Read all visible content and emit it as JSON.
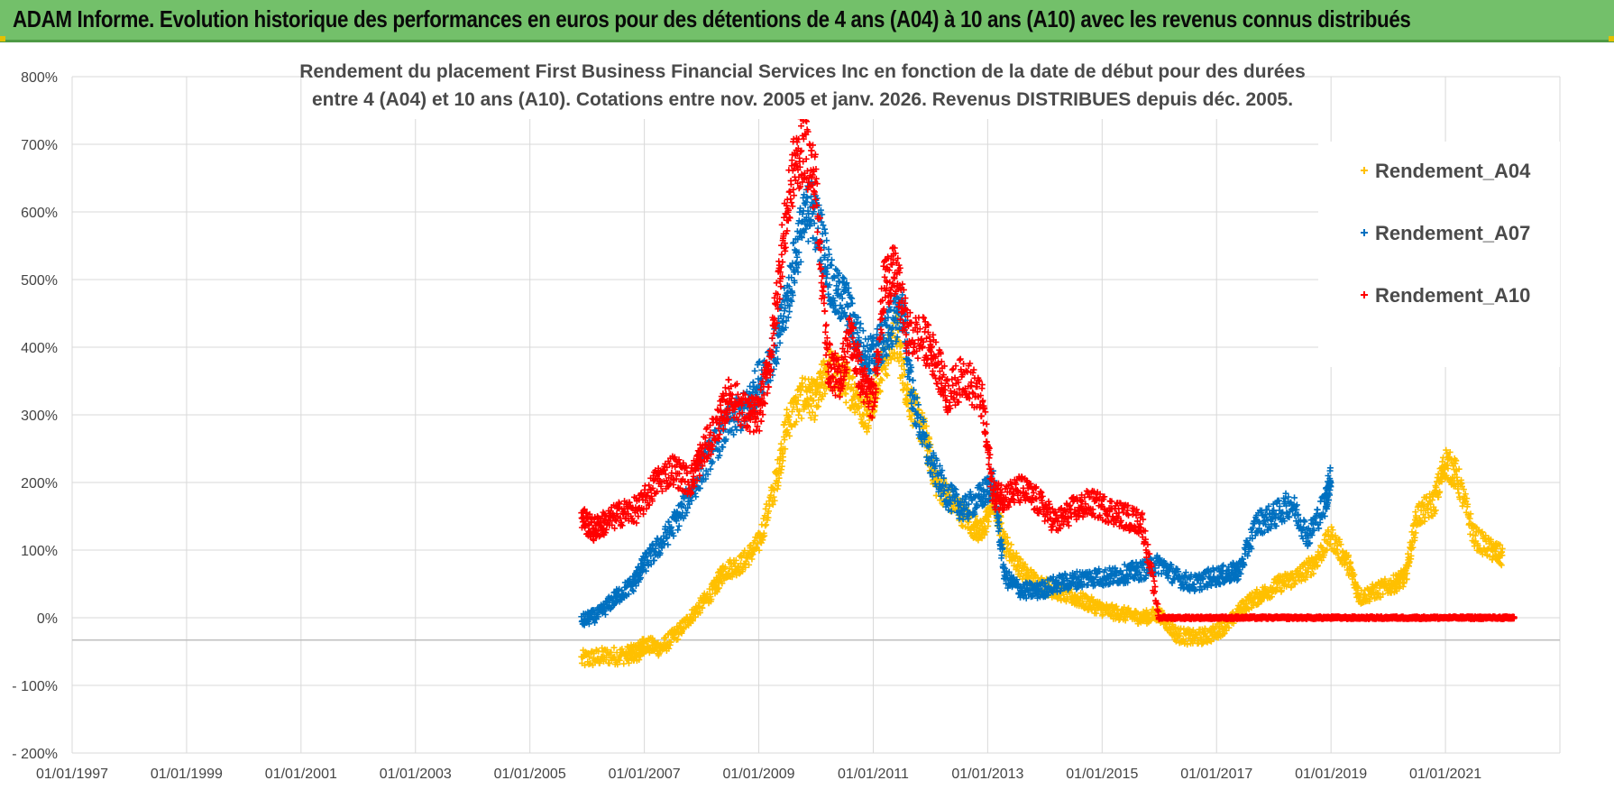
{
  "header": {
    "title": "ADAM Informe. Evolution historique des performances en euros pour des détentions de 4 ans (A04) à 10 ans (A10) avec les revenus connus distribués"
  },
  "chart_data": {
    "type": "scatter",
    "title_line1": "Rendement du placement First Business Financial Services  Inc en fonction de la date de début pour des durées",
    "title_line2": "entre 4 (A04) et 10 ans (A10).  Cotations entre nov. 2005 et janv. 2026. Revenus DISTRIBUES  depuis déc. 2005.",
    "xlabel": "",
    "ylabel": "",
    "xlim": [
      1997.0,
      2023.0
    ],
    "ylim": [
      -200,
      800
    ],
    "y_ticks": [
      -200,
      -100,
      0,
      100,
      200,
      300,
      400,
      500,
      600,
      700,
      800
    ],
    "y_tick_labels": [
      "- 200%",
      "- 100%",
      "0%",
      "100%",
      "200%",
      "300%",
      "400%",
      "500%",
      "600%",
      "700%",
      "800%"
    ],
    "x_ticks": [
      1997,
      1999,
      2001,
      2003,
      2005,
      2007,
      2009,
      2011,
      2013,
      2015,
      2017,
      2019,
      2021
    ],
    "x_tick_labels": [
      "01/01/1997",
      "01/01/1999",
      "01/01/2001",
      "01/01/2003",
      "01/01/2005",
      "01/01/2007",
      "01/01/2009",
      "01/01/2011",
      "01/01/2013",
      "01/01/2015",
      "01/01/2017",
      "01/01/2019",
      "01/01/2021"
    ],
    "grid": true,
    "legend_position": "top-right",
    "series": [
      {
        "name": "Rendement_A04",
        "color": "#ffc000",
        "x": [
          2005.9,
          2006.3,
          2006.7,
          2006.9,
          2007.0,
          2007.3,
          2007.6,
          2007.9,
          2008.2,
          2008.4,
          2008.7,
          2009.0,
          2009.3,
          2009.5,
          2009.8,
          2010.0,
          2010.2,
          2010.5,
          2010.7,
          2010.9,
          2011.1,
          2011.4,
          2011.6,
          2011.9,
          2012.1,
          2012.4,
          2012.7,
          2012.9,
          2013.1,
          2013.3,
          2013.6,
          2013.9,
          2014.2,
          2014.5,
          2014.8,
          2015.1,
          2015.4,
          2015.7,
          2016.0,
          2016.3,
          2016.6,
          2016.9,
          2017.2,
          2017.5,
          2017.8,
          2018.1,
          2018.4,
          2018.7,
          2019.0,
          2019.3,
          2019.5,
          2019.8,
          2020.1,
          2020.3,
          2020.5,
          2020.8,
          2021.0,
          2021.2,
          2021.5,
          2021.8,
          2022.0
        ],
        "values": [
          -62,
          -57,
          -55,
          -50,
          -40,
          -45,
          -20,
          10,
          40,
          70,
          80,
          110,
          200,
          290,
          330,
          320,
          370,
          350,
          330,
          300,
          360,
          420,
          330,
          270,
          200,
          170,
          140,
          125,
          175,
          110,
          70,
          50,
          40,
          30,
          20,
          10,
          5,
          0,
          5,
          -25,
          -30,
          -25,
          -10,
          20,
          35,
          50,
          60,
          80,
          120,
          80,
          30,
          40,
          50,
          60,
          150,
          170,
          230,
          210,
          120,
          100,
          90
        ]
      },
      {
        "name": "Rendement_A07",
        "color": "#0070c0",
        "x": [
          2005.9,
          2006.2,
          2006.5,
          2006.8,
          2007.0,
          2007.3,
          2007.6,
          2007.9,
          2008.2,
          2008.5,
          2008.8,
          2009.0,
          2009.3,
          2009.5,
          2009.7,
          2009.9,
          2010.1,
          2010.3,
          2010.5,
          2010.7,
          2010.9,
          2011.1,
          2011.3,
          2011.5,
          2011.7,
          2012.0,
          2012.3,
          2012.6,
          2012.9,
          2013.1,
          2013.3,
          2013.6,
          2013.9,
          2014.2,
          2014.5,
          2014.8,
          2015.1,
          2015.4,
          2015.7,
          2016.0,
          2016.3,
          2016.6,
          2016.9,
          2017.2,
          2017.4,
          2017.7,
          2018.0,
          2018.3,
          2018.6,
          2018.9,
          2019.0
        ],
        "values": [
          -5,
          5,
          30,
          50,
          80,
          110,
          150,
          200,
          250,
          290,
          310,
          350,
          400,
          470,
          560,
          610,
          560,
          480,
          470,
          420,
          380,
          400,
          430,
          460,
          320,
          230,
          180,
          160,
          180,
          200,
          60,
          40,
          40,
          50,
          55,
          60,
          60,
          65,
          70,
          80,
          60,
          50,
          60,
          65,
          70,
          140,
          150,
          170,
          120,
          170,
          210
        ]
      },
      {
        "name": "Rendement_A10",
        "color": "#ff0000",
        "x": [
          2005.9,
          2006.1,
          2006.3,
          2006.6,
          2006.9,
          2007.2,
          2007.5,
          2007.8,
          2008.0,
          2008.3,
          2008.5,
          2008.8,
          2009.0,
          2009.2,
          2009.4,
          2009.6,
          2009.8,
          2010.0,
          2010.2,
          2010.4,
          2010.6,
          2010.8,
          2011.0,
          2011.2,
          2011.4,
          2011.6,
          2011.9,
          2012.1,
          2012.3,
          2012.6,
          2012.9,
          2013.1,
          2013.3,
          2013.6,
          2013.9,
          2014.2,
          2014.5,
          2014.8,
          2015.1,
          2015.4,
          2015.7,
          2016.0,
          2016.5,
          2017.0,
          2017.5,
          2018.0,
          2018.5,
          2019.0,
          2019.5,
          2020.0,
          2020.5,
          2021.0,
          2021.5,
          2022.0,
          2022.2
        ],
        "values": [
          150,
          130,
          140,
          155,
          160,
          200,
          220,
          200,
          240,
          290,
          330,
          300,
          300,
          380,
          540,
          660,
          700,
          640,
          380,
          350,
          420,
          350,
          320,
          500,
          510,
          420,
          410,
          380,
          330,
          360,
          320,
          180,
          180,
          190,
          170,
          140,
          160,
          170,
          160,
          150,
          140,
          0,
          0,
          0,
          0,
          0,
          0,
          0,
          0,
          0,
          0,
          0,
          0,
          0,
          0
        ]
      }
    ]
  }
}
